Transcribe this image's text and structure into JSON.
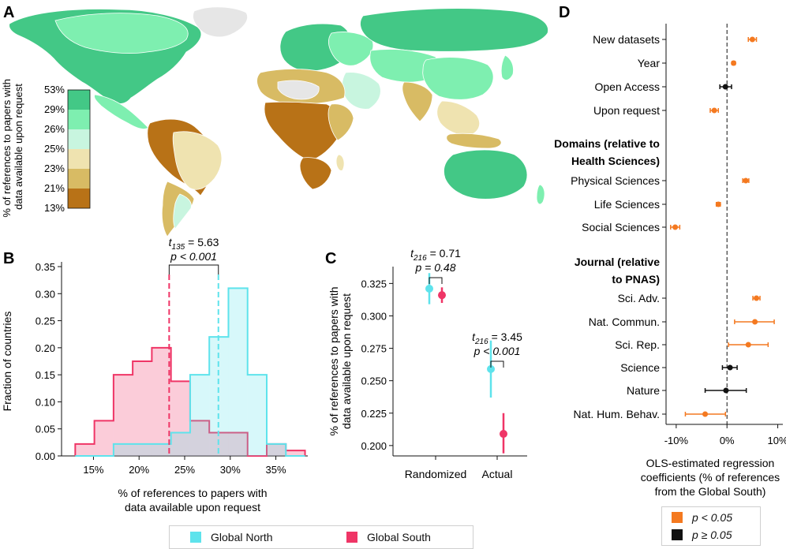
{
  "panels": {
    "A": "A",
    "B": "B",
    "C": "C",
    "D": "D"
  },
  "colors": {
    "north": "#5ee3ec",
    "south": "#ef3566",
    "sig": "#f47920",
    "nonsig": "#111111",
    "map_scale": [
      "#b87217",
      "#d8bb64",
      "#efe3b0",
      "#c8f5df",
      "#7eefb0",
      "#43c886"
    ]
  },
  "chart_data": [
    {
      "panel": "A",
      "type": "heatmap",
      "title": "World map",
      "ylabel": "% of references to papers with data available upon request",
      "colorbar_ticks": [
        "53%",
        "29%",
        "26%",
        "25%",
        "23%",
        "21%",
        "13%"
      ]
    },
    {
      "panel": "B",
      "type": "bar",
      "xlabel": "% of references to papers with data available upon request",
      "ylabel": "Fraction of countries",
      "bin_edges": [
        13,
        15.1,
        17.2,
        19.3,
        21.4,
        23.5,
        25.6,
        27.7,
        29.8,
        31.9,
        34.0,
        36.1,
        38.2
      ],
      "series": [
        {
          "name": "Global South",
          "values": [
            0.022,
            0.065,
            0.15,
            0.175,
            0.2,
            0.138,
            0.065,
            0.043,
            0.043,
            0.0,
            0.022,
            0.01
          ]
        },
        {
          "name": "Global North",
          "values": [
            0.0,
            0.0,
            0.022,
            0.022,
            0.022,
            0.043,
            0.15,
            0.22,
            0.31,
            0.15,
            0.022,
            0.0
          ]
        }
      ],
      "means": {
        "south": 23.3,
        "north": 28.7
      },
      "xlim": [
        11.5,
        38.5
      ],
      "ylim": [
        0,
        0.35
      ],
      "xticks": [
        15,
        20,
        25,
        30,
        35
      ],
      "xtick_labels": [
        "15%",
        "20%",
        "25%",
        "30%",
        "35%"
      ],
      "yticks": [
        0,
        0.05,
        0.1,
        0.15,
        0.2,
        0.25,
        0.3,
        0.35
      ],
      "ytick_labels": [
        "0.00",
        "0.05",
        "0.10",
        "0.15",
        "0.20",
        "0.25",
        "0.30",
        "0.35"
      ],
      "annotation": {
        "t_label": "t",
        "t_df": "135",
        "t_value": "= 5.63",
        "p_text": "p < 0.001"
      }
    },
    {
      "panel": "C",
      "type": "scatter",
      "ylabel": "% of references to papers with data available upon request",
      "categories": [
        "Randomized",
        "Actual"
      ],
      "series": [
        {
          "name": "Global North",
          "values": [
            0.321,
            0.259
          ],
          "ci_low": [
            0.309,
            0.237
          ],
          "ci_high": [
            0.333,
            0.281
          ]
        },
        {
          "name": "Global South",
          "values": [
            0.316,
            0.209
          ],
          "ci_low": [
            0.31,
            0.194
          ],
          "ci_high": [
            0.322,
            0.225
          ]
        }
      ],
      "ylim": [
        0.192,
        0.338
      ],
      "yticks": [
        0.2,
        0.225,
        0.25,
        0.275,
        0.3,
        0.325
      ],
      "ytick_labels": [
        "0.200",
        "0.225",
        "0.250",
        "0.275",
        "0.300",
        "0.325"
      ],
      "annotations": [
        {
          "t_label": "t",
          "t_df": "216",
          "t_value": "= 0.71",
          "p_text": "p = 0.48"
        },
        {
          "t_label": "t",
          "t_df": "216",
          "t_value": "= 3.45",
          "p_text": "p < 0.001"
        }
      ]
    },
    {
      "panel": "D",
      "type": "scatter",
      "xlabel_lines": [
        "OLS-estimated regression",
        "coefficients (% of references",
        "from the Global South)"
      ],
      "xlim": [
        -12,
        11
      ],
      "xticks": [
        -10,
        0,
        10
      ],
      "xtick_labels": [
        "-10%",
        "0%",
        "10%"
      ],
      "rows": [
        {
          "label": "New datasets",
          "coef": 5.0,
          "low": 4.2,
          "high": 5.8,
          "sig": true
        },
        {
          "label": "Year",
          "coef": 1.3,
          "low": 1.0,
          "high": 1.6,
          "sig": true
        },
        {
          "label": "Open Access",
          "coef": -0.3,
          "low": -1.4,
          "high": 0.9,
          "sig": false
        },
        {
          "label": "Upon request",
          "coef": -2.5,
          "low": -3.3,
          "high": -1.7,
          "sig": true
        },
        {
          "label": "Physical Sciences",
          "coef": 3.7,
          "low": 3.1,
          "high": 4.3,
          "sig": true
        },
        {
          "label": "Life Sciences",
          "coef": -1.7,
          "low": -2.1,
          "high": -1.3,
          "sig": true
        },
        {
          "label": "Social Sciences",
          "coef": -10.2,
          "low": -11.1,
          "high": -9.3,
          "sig": true
        },
        {
          "label": "Sci. Adv.",
          "coef": 5.8,
          "low": 5.1,
          "high": 6.5,
          "sig": true
        },
        {
          "label": "Nat. Commun.",
          "coef": 5.5,
          "low": 1.5,
          "high": 9.3,
          "sig": true
        },
        {
          "label": "Sci. Rep.",
          "coef": 4.2,
          "low": 0.3,
          "high": 8.1,
          "sig": true
        },
        {
          "label": "Science",
          "coef": 0.6,
          "low": -0.9,
          "high": 2.0,
          "sig": false
        },
        {
          "label": "Nature",
          "coef": -0.2,
          "low": -4.3,
          "high": 3.8,
          "sig": false
        },
        {
          "label": "Nat. Hum. Behav.",
          "coef": -4.3,
          "low": -8.2,
          "high": -0.3,
          "sig": true
        }
      ],
      "headers": [
        {
          "lines": [
            "Domains (relative to",
            "Health Sciences)"
          ]
        },
        {
          "lines": [
            "Journal (relative",
            "to PNAS)"
          ]
        }
      ],
      "legend": {
        "sig_label": "p < 0.05",
        "nonsig_label": "p ≥ 0.05"
      }
    }
  ],
  "legend_bottom": {
    "north_label": "Global North",
    "south_label": "Global South"
  }
}
